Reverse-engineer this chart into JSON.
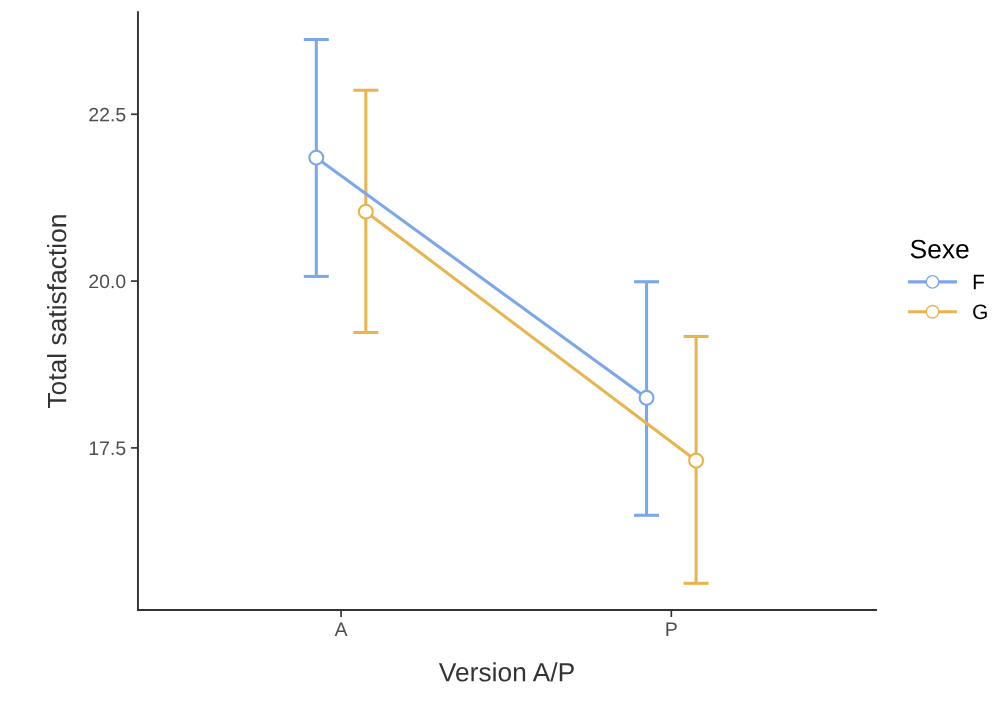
{
  "chart_data": {
    "type": "line",
    "xlabel": "Version A/P",
    "ylabel": "Total satisfaction",
    "legend_title": "Sexe",
    "categories": [
      "A",
      "P"
    ],
    "ylim": [
      15.07,
      24.03
    ],
    "yticks": [
      17.5,
      {
        "value": 20,
        "label": "20.0"
      },
      22.5
    ],
    "series": [
      {
        "name": "F",
        "color": "#7ba7ea",
        "values": [
          21.85,
          18.25
        ],
        "errors": [
          [
            20.07,
            23.62
          ],
          [
            16.49,
            19.99
          ]
        ]
      },
      {
        "name": "G",
        "color": "#e8b450",
        "values": [
          21.04,
          17.31
        ],
        "errors": [
          [
            19.23,
            22.86
          ],
          [
            15.47,
            19.17
          ]
        ]
      }
    ],
    "marker": "circle",
    "line_style": "solid",
    "grid": false,
    "legend": "right"
  }
}
